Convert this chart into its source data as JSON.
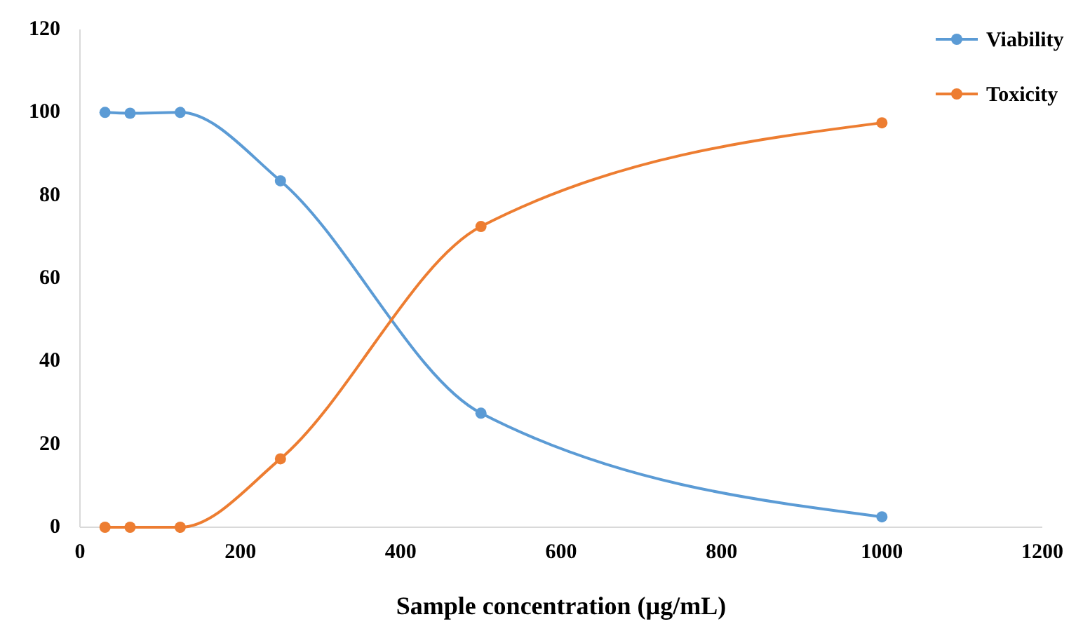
{
  "chart_data": {
    "type": "line",
    "xlabel": "Sample concentration (µg/mL)",
    "x": [
      31.25,
      62.5,
      125,
      250,
      500,
      1000
    ],
    "series": [
      {
        "name": "Viability",
        "color": "#5b9bd5",
        "values": [
          100,
          99.8,
          100,
          83.5,
          27.5,
          2.5
        ]
      },
      {
        "name": "Toxicity",
        "color": "#ed7d31",
        "values": [
          0,
          0,
          0,
          16.5,
          72.5,
          97.5
        ]
      }
    ],
    "xlim": [
      0,
      1200
    ],
    "xticks": [
      0,
      200,
      400,
      600,
      800,
      1000,
      1200
    ],
    "ylim": [
      0,
      120
    ],
    "yticks": [
      0,
      20,
      40,
      60,
      80,
      100,
      120
    ],
    "grid": false,
    "legend": "top right",
    "marker": "circle",
    "line_style": "solid"
  }
}
